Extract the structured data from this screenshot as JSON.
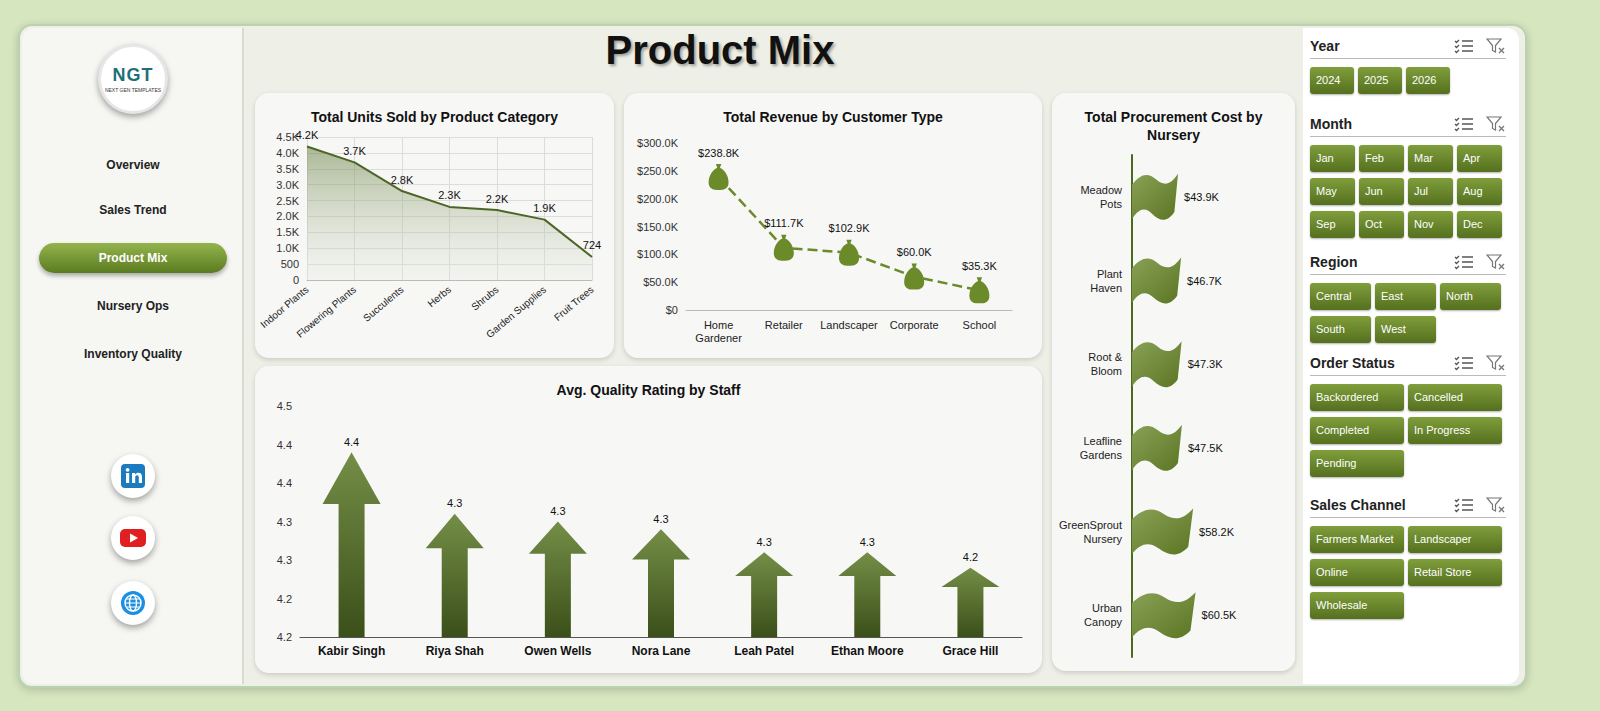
{
  "header": {
    "title": "Product Mix"
  },
  "logo": {
    "initials": "NGT",
    "tagline": "NEXT GEN TEMPLATES"
  },
  "nav": {
    "items": [
      "Overview",
      "Sales Trend",
      "Product Mix",
      "Nursery Ops",
      "Inventory Quality"
    ],
    "active": "Product Mix"
  },
  "filters": [
    {
      "title": "Year",
      "options": [
        "2024",
        "2025",
        "2026"
      ]
    },
    {
      "title": "Month",
      "options": [
        "Jan",
        "Feb",
        "Mar",
        "Apr",
        "May",
        "Jun",
        "Jul",
        "Aug",
        "Sep",
        "Oct",
        "Nov",
        "Dec"
      ]
    },
    {
      "title": "Region",
      "options": [
        "Central",
        "East",
        "North",
        "South",
        "West"
      ]
    },
    {
      "title": "Order Status",
      "options": [
        "Backordered",
        "Cancelled",
        "Completed",
        "In Progress",
        "Pending"
      ]
    },
    {
      "title": "Sales Channel",
      "options": [
        "Farmers Market",
        "Landscaper",
        "Online",
        "Retail Store",
        "Wholesale"
      ]
    }
  ],
  "chart_data": [
    {
      "type": "area",
      "title": "Total Units Sold by Product Category",
      "categories": [
        "Indoor Plants",
        "Flowering Plants",
        "Succulents",
        "Herbs",
        "Shrubs",
        "Garden Supplies",
        "Fruit Trees"
      ],
      "values": [
        4200,
        3700,
        2800,
        2300,
        2200,
        1900,
        724
      ],
      "value_labels": [
        "4.2K",
        "3.7K",
        "2.8K",
        "2.3K",
        "2.2K",
        "1.9K",
        "724"
      ],
      "data_labels": true,
      "color": "#55702a",
      "ylim": [
        0,
        4500
      ],
      "yticks": [
        0,
        500,
        {
          "value": 1000,
          "label": "1.0K"
        },
        {
          "value": 1500,
          "label": "1.5K"
        },
        {
          "value": 2000,
          "label": "2.0K"
        },
        {
          "value": 2500,
          "label": "2.5K"
        },
        {
          "value": 3000,
          "label": "3.0K"
        },
        {
          "value": 3500,
          "label": "3.5K"
        },
        {
          "value": 4000,
          "label": "4.0K"
        },
        {
          "value": 4500,
          "label": "4.5K"
        }
      ],
      "grid": true
    },
    {
      "type": "line",
      "title": "Total Revenue by Customer Type",
      "categories": [
        "Home Gardener",
        "Retailer",
        "Landscaper",
        "Corporate",
        "School"
      ],
      "values": [
        238800,
        111700,
        102900,
        60000,
        35300
      ],
      "value_labels": [
        "$238.8K",
        "$111.7K",
        "$102.9K",
        "$60.0K",
        "$35.3K"
      ],
      "data_labels": true,
      "color": "#6b8a2a",
      "line_style": "dashed",
      "marker": "bag",
      "ylim": [
        0,
        300000
      ],
      "yticks": [
        {
          "value": 0,
          "label": "$0"
        },
        {
          "value": 50000,
          "label": "$50.0K"
        },
        {
          "value": 100000,
          "label": "$100.0K"
        },
        {
          "value": 150000,
          "label": "$150.0K"
        },
        {
          "value": 200000,
          "label": "$200.0K"
        },
        {
          "value": 250000,
          "label": "$250.0K"
        },
        {
          "value": 300000,
          "label": "$300.0K"
        }
      ],
      "grid": false
    },
    {
      "type": "bar",
      "orientation": "horizontal",
      "marker": "flag",
      "title": "Total Procurement Cost by Nursery",
      "categories": [
        "Meadow Pots",
        "Plant Haven",
        "Root & Bloom",
        "Leafline Gardens",
        "GreenSprout Nursery",
        "Urban Canopy"
      ],
      "values": [
        43900,
        46700,
        47300,
        47500,
        58200,
        60500
      ],
      "value_labels": [
        "$43.9K",
        "$46.7K",
        "$47.3K",
        "$47.5K",
        "$58.2K",
        "$60.5K"
      ],
      "data_labels": true,
      "color": "#6b8a2a",
      "xlim": [
        0,
        100000
      ],
      "tick_labels": "y"
    },
    {
      "type": "bar",
      "marker": "arrow",
      "title": "Avg. Quality Rating by Staff",
      "categories": [
        "Kabir Singh",
        "Riya Shah",
        "Owen Wells",
        "Nora Lane",
        "Leah Patel",
        "Ethan Moore",
        "Grace Hill"
      ],
      "values": [
        4.39,
        4.31,
        4.3,
        4.29,
        4.26,
        4.26,
        4.24
      ],
      "value_labels": [
        "4.4",
        "4.3",
        "4.3",
        "4.3",
        "4.3",
        "4.3",
        "4.2"
      ],
      "data_labels": true,
      "color": "#5b7a26",
      "ylim": [
        4.15,
        4.45
      ],
      "yticks": [
        {
          "value": 4.15,
          "label": "4.2"
        },
        {
          "value": 4.2,
          "label": "4.2"
        },
        {
          "value": 4.25,
          "label": "4.3"
        },
        {
          "value": 4.3,
          "label": "4.3"
        },
        {
          "value": 4.35,
          "label": "4.4"
        },
        {
          "value": 4.4,
          "label": "4.4"
        },
        {
          "value": 4.45,
          "label": "4.5"
        }
      ],
      "grid": false
    }
  ]
}
